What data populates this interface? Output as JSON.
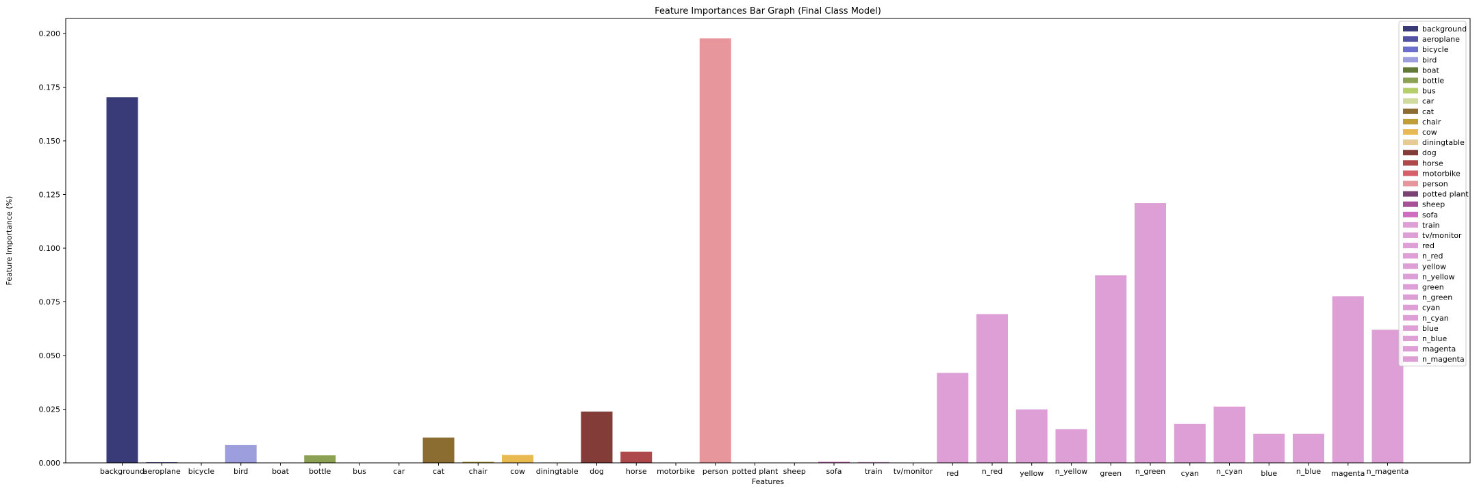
{
  "chart_data": {
    "type": "bar",
    "title": "Feature Importances Bar Graph (Final Class Model)",
    "xlabel": "Features",
    "ylabel": "Feature Importance (%)",
    "ylim": [
      0,
      0.207
    ],
    "yticks": [
      "0.000",
      "0.025",
      "0.050",
      "0.075",
      "0.100",
      "0.125",
      "0.150",
      "0.175",
      "0.200"
    ],
    "grid": false,
    "legend_position": "top-right",
    "categories": [
      "background",
      "aeroplane",
      "bicycle",
      "bird",
      "boat",
      "bottle",
      "bus",
      "car",
      "cat",
      "chair",
      "cow",
      "diningtable",
      "dog",
      "horse",
      "motorbike",
      "person",
      "potted plant",
      "sheep",
      "sofa",
      "train",
      "tv/monitor",
      "red",
      "n_red",
      "yellow",
      "n_yellow",
      "green",
      "n_green",
      "cyan",
      "n_cyan",
      "blue",
      "n_blue",
      "magenta",
      "n_magenta"
    ],
    "values": [
      0.1703,
      0.0003,
      0.0,
      0.0083,
      0.0,
      0.0035,
      0.0,
      0.0,
      0.0118,
      0.0005,
      0.0037,
      0.0002,
      0.0239,
      0.0052,
      0.0,
      0.1977,
      0.0,
      0.0,
      0.0005,
      0.0004,
      0.0,
      0.0419,
      0.0693,
      0.0249,
      0.0157,
      0.0874,
      0.121,
      0.0182,
      0.0262,
      0.0135,
      0.0135,
      0.0776,
      0.062
    ],
    "colors": [
      "#393b79",
      "#5254a3",
      "#6b6ecf",
      "#9c9ede",
      "#637939",
      "#8ca252",
      "#b5cf6b",
      "#cedb9c",
      "#8c6d31",
      "#bd9e39",
      "#e7ba52",
      "#e7cb94",
      "#843c39",
      "#ad494a",
      "#d6616b",
      "#e7969c",
      "#7b4173",
      "#a55194",
      "#ce6dbd",
      "#de9ed6",
      "#de9ed6",
      "#de9ed6",
      "#de9ed6",
      "#de9ed6",
      "#de9ed6",
      "#de9ed6",
      "#de9ed6",
      "#de9ed6",
      "#de9ed6",
      "#de9ed6",
      "#de9ed6",
      "#de9ed6",
      "#de9ed6"
    ],
    "legend": [
      "background",
      "aeroplane",
      "bicycle",
      "bird",
      "boat",
      "bottle",
      "bus",
      "car",
      "cat",
      "chair",
      "cow",
      "diningtable",
      "dog",
      "horse",
      "motorbike",
      "person",
      "potted plant",
      "sheep",
      "sofa",
      "train",
      "tv/monitor",
      "red",
      "n_red",
      "yellow",
      "n_yellow",
      "green",
      "n_green",
      "cyan",
      "n_cyan",
      "blue",
      "n_blue",
      "magenta",
      "n_magenta"
    ]
  }
}
